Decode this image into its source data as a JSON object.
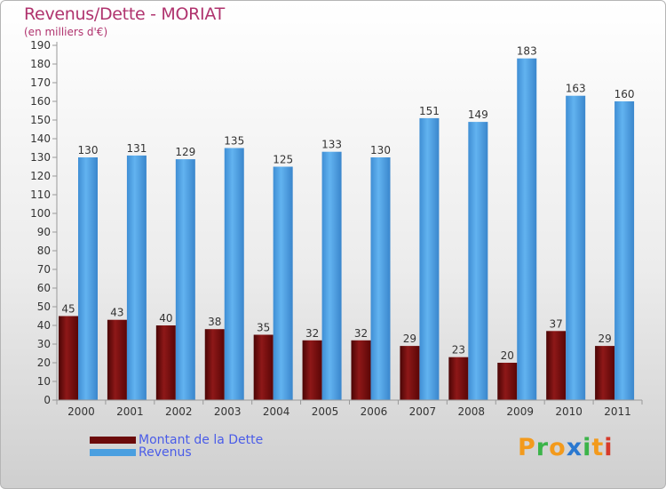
{
  "header": {
    "title": "Revenus/Dette - MORIAT",
    "subtitle": "(en milliers d'€)"
  },
  "colors": {
    "dette": "#6b0a0a",
    "revenus": "#4a9fe0",
    "title": "#b0336e",
    "legend_text": "#4a5ce8"
  },
  "logo": {
    "text": "Proxiti",
    "letters": [
      {
        "ch": "P",
        "color": "#f39a1c"
      },
      {
        "ch": "r",
        "color": "#3cb44a"
      },
      {
        "ch": "o",
        "color": "#f39a1c"
      },
      {
        "ch": "x",
        "color": "#2a78d0"
      },
      {
        "ch": "i",
        "color": "#3cb44a"
      },
      {
        "ch": "t",
        "color": "#f39a1c"
      },
      {
        "ch": "i",
        "color": "#d63a2a"
      }
    ]
  },
  "chart_data": {
    "type": "bar",
    "title": "Revenus/Dette - MORIAT",
    "subtitle": "(en milliers d'€)",
    "categories": [
      "2000",
      "2001",
      "2002",
      "2003",
      "2004",
      "2005",
      "2006",
      "2007",
      "2008",
      "2009",
      "2010",
      "2011"
    ],
    "series": [
      {
        "name": "Montant de la Dette",
        "values": [
          45,
          43,
          40,
          38,
          35,
          32,
          32,
          29,
          23,
          20,
          37,
          29
        ],
        "color": "#6b0a0a"
      },
      {
        "name": "Revenus",
        "values": [
          130,
          131,
          129,
          135,
          125,
          133,
          130,
          151,
          149,
          183,
          163,
          160
        ],
        "color": "#4a9fe0"
      }
    ],
    "ylim": [
      0,
      190
    ],
    "ytick_step": 10,
    "grid": false,
    "legend_position": "bottom-left"
  }
}
